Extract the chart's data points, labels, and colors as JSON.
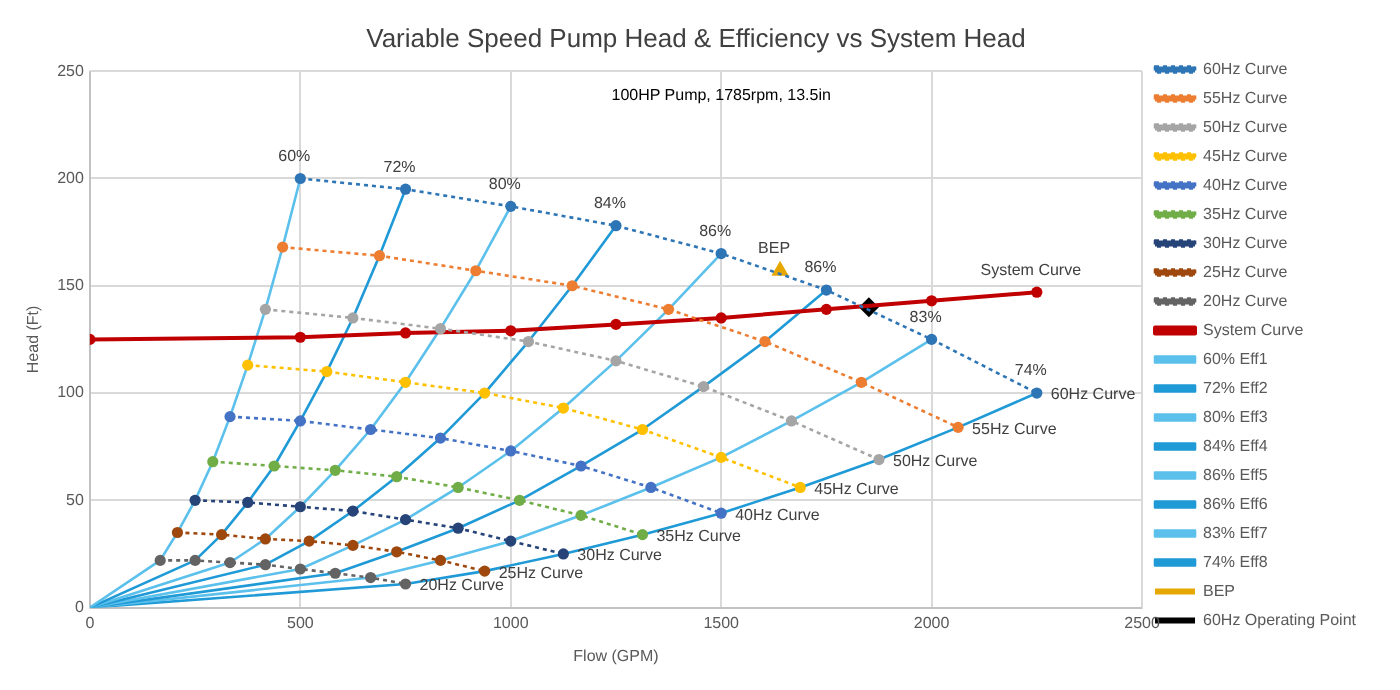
{
  "chart_data": {
    "type": "line",
    "title": "Variable Speed Pump Head & Efficiency vs System Head",
    "subtitle": "100HP Pump, 1785rpm, 13.5in",
    "xlabel": "Flow (GPM)",
    "ylabel": "Head (Ft)",
    "xlim": [
      0,
      2500
    ],
    "xticks": [
      0,
      500,
      1000,
      1500,
      2000,
      2500
    ],
    "ylim": [
      0,
      250
    ],
    "yticks": [
      0,
      50,
      100,
      150,
      200,
      250
    ],
    "grid": true,
    "legend": "right",
    "series": [
      {
        "name": "60Hz Curve",
        "color": "#2e75b6",
        "line_style": "dotted",
        "marker": "circle",
        "x": [
          500,
          750,
          1000,
          1250,
          1500,
          1750,
          2000,
          2250
        ],
        "values": [
          200,
          195,
          187,
          178,
          165,
          148,
          125,
          100
        ]
      },
      {
        "name": "55Hz Curve",
        "color": "#ed7d31",
        "line_style": "dotted",
        "marker": "circle",
        "x": [
          458,
          688,
          917,
          1146,
          1375,
          1604,
          1833,
          2063
        ],
        "values": [
          168,
          164,
          157,
          150,
          139,
          124,
          105,
          84
        ]
      },
      {
        "name": "50Hz Curve",
        "color": "#a5a5a5",
        "line_style": "dotted",
        "marker": "circle",
        "x": [
          417,
          625,
          833,
          1042,
          1250,
          1458,
          1667,
          1875
        ],
        "values": [
          139,
          135,
          130,
          124,
          115,
          103,
          87,
          69
        ]
      },
      {
        "name": "45Hz Curve",
        "color": "#ffc000",
        "line_style": "dotted",
        "marker": "circle",
        "x": [
          375,
          563,
          750,
          938,
          1125,
          1313,
          1500,
          1688
        ],
        "values": [
          113,
          110,
          105,
          100,
          93,
          83,
          70,
          56
        ]
      },
      {
        "name": "40Hz Curve",
        "color": "#4472c4",
        "line_style": "dotted",
        "marker": "circle",
        "x": [
          333,
          500,
          667,
          833,
          1000,
          1167,
          1333,
          1500
        ],
        "values": [
          89,
          87,
          83,
          79,
          73,
          66,
          56,
          44
        ]
      },
      {
        "name": "35Hz Curve",
        "color": "#70ad47",
        "line_style": "dotted",
        "marker": "circle",
        "x": [
          292,
          438,
          583,
          729,
          875,
          1021,
          1167,
          1313
        ],
        "values": [
          68,
          66,
          64,
          61,
          56,
          50,
          43,
          34
        ]
      },
      {
        "name": "30Hz Curve",
        "color": "#264478",
        "line_style": "dotted",
        "marker": "circle",
        "x": [
          250,
          375,
          500,
          625,
          750,
          875,
          1000,
          1125
        ],
        "values": [
          50,
          49,
          47,
          45,
          41,
          37,
          31,
          25
        ]
      },
      {
        "name": "25Hz Curve",
        "color": "#9e480e",
        "line_style": "dotted",
        "marker": "circle",
        "x": [
          208,
          313,
          417,
          521,
          625,
          729,
          833,
          938
        ],
        "values": [
          35,
          34,
          32,
          31,
          29,
          26,
          22,
          17
        ]
      },
      {
        "name": "20Hz Curve",
        "color": "#636363",
        "line_style": "dotted",
        "marker": "circle",
        "x": [
          167,
          250,
          333,
          417,
          500,
          583,
          667,
          750
        ],
        "values": [
          22,
          22,
          21,
          20,
          18,
          16,
          14,
          11
        ]
      },
      {
        "name": "System Curve",
        "color": "#c00000",
        "line_style": "solid",
        "marker": "circle",
        "x": [
          0,
          500,
          750,
          1000,
          1250,
          1500,
          1750,
          2000,
          2250
        ],
        "values": [
          125,
          126,
          128,
          129,
          132,
          135,
          139,
          143,
          147
        ]
      },
      {
        "name": "60% Eff1",
        "color": "#5bc0eb",
        "line_style": "solid",
        "marker": "none",
        "x": [
          0,
          167,
          208,
          250,
          292,
          333,
          375,
          417,
          458,
          500
        ],
        "values": [
          0,
          22,
          35,
          50,
          68,
          89,
          113,
          139,
          168,
          200
        ]
      },
      {
        "name": "72% Eff2",
        "color": "#1f9ad6",
        "line_style": "solid",
        "marker": "none",
        "x": [
          0,
          250,
          313,
          375,
          438,
          500,
          563,
          625,
          688,
          750
        ],
        "values": [
          0,
          22,
          34,
          49,
          66,
          87,
          110,
          135,
          164,
          195
        ]
      },
      {
        "name": "80% Eff3",
        "color": "#5bc0eb",
        "line_style": "solid",
        "marker": "none",
        "x": [
          0,
          333,
          417,
          500,
          583,
          667,
          750,
          833,
          917,
          1000
        ],
        "values": [
          0,
          21,
          32,
          47,
          64,
          83,
          105,
          130,
          157,
          187
        ]
      },
      {
        "name": "84% Eff4",
        "color": "#1f9ad6",
        "line_style": "solid",
        "marker": "none",
        "x": [
          0,
          417,
          521,
          625,
          729,
          833,
          938,
          1042,
          1146,
          1250
        ],
        "values": [
          0,
          20,
          31,
          45,
          61,
          79,
          100,
          124,
          150,
          178
        ]
      },
      {
        "name": "86% Eff5",
        "color": "#5bc0eb",
        "line_style": "solid",
        "marker": "none",
        "x": [
          0,
          500,
          625,
          750,
          875,
          1000,
          1125,
          1250,
          1375,
          1500
        ],
        "values": [
          0,
          18,
          29,
          41,
          56,
          73,
          93,
          115,
          139,
          165
        ]
      },
      {
        "name": "86% Eff6",
        "color": "#1f9ad6",
        "line_style": "solid",
        "marker": "none",
        "x": [
          0,
          583,
          729,
          875,
          1021,
          1167,
          1313,
          1458,
          1604,
          1750
        ],
        "values": [
          0,
          16,
          26,
          37,
          50,
          66,
          83,
          103,
          124,
          148
        ]
      },
      {
        "name": "83% Eff7",
        "color": "#5bc0eb",
        "line_style": "solid",
        "marker": "none",
        "x": [
          0,
          667,
          833,
          1000,
          1167,
          1333,
          1500,
          1667,
          1833,
          2000
        ],
        "values": [
          0,
          14,
          22,
          31,
          43,
          56,
          70,
          87,
          105,
          125
        ]
      },
      {
        "name": "74% Eff8",
        "color": "#1f9ad6",
        "line_style": "solid",
        "marker": "none",
        "x": [
          0,
          750,
          938,
          1125,
          1313,
          1500,
          1688,
          1875,
          2063,
          2250
        ],
        "values": [
          0,
          11,
          17,
          25,
          34,
          44,
          56,
          69,
          84,
          100
        ]
      },
      {
        "name": "BEP",
        "type": "scatter",
        "color": "#e6a700",
        "marker": "triangle",
        "x": [
          1640
        ],
        "values": [
          157
        ]
      },
      {
        "name": "60Hz Operating Point",
        "type": "scatter",
        "color": "#000000",
        "marker": "diamond",
        "x": [
          1851
        ],
        "values": [
          140
        ]
      }
    ],
    "annotations": [
      {
        "text": "60%",
        "x": 500,
        "y": 200
      },
      {
        "text": "72%",
        "x": 750,
        "y": 195
      },
      {
        "text": "80%",
        "x": 1000,
        "y": 187
      },
      {
        "text": "84%",
        "x": 1250,
        "y": 178
      },
      {
        "text": "86%",
        "x": 1500,
        "y": 165
      },
      {
        "text": "86%",
        "x": 1750,
        "y": 148
      },
      {
        "text": "83%",
        "x": 2000,
        "y": 125
      },
      {
        "text": "74%",
        "x": 2250,
        "y": 100
      },
      {
        "text": "BEP",
        "x": 1640,
        "y": 157
      },
      {
        "text": "System Curve",
        "x": 2250,
        "y": 147
      },
      {
        "text": "60Hz Curve",
        "x": 2250,
        "y": 100
      },
      {
        "text": "55Hz Curve",
        "x": 2063,
        "y": 84
      },
      {
        "text": "50Hz Curve",
        "x": 1875,
        "y": 69
      },
      {
        "text": "45Hz Curve",
        "x": 1688,
        "y": 56
      },
      {
        "text": "40Hz Curve",
        "x": 1500,
        "y": 44
      },
      {
        "text": "35Hz Curve",
        "x": 1313,
        "y": 34
      },
      {
        "text": "30Hz Curve",
        "x": 1125,
        "y": 25
      },
      {
        "text": "25Hz Curve",
        "x": 938,
        "y": 17
      },
      {
        "text": "20Hz Curve",
        "x": 750,
        "y": 11
      }
    ]
  }
}
